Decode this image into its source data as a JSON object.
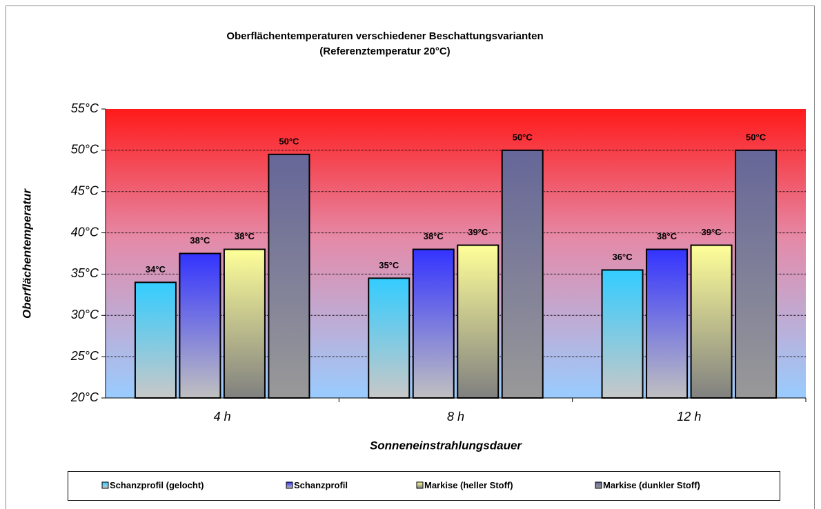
{
  "chart_data": {
    "type": "bar",
    "title": "Oberflächentemperaturen verschiedener Beschattungsvarianten",
    "subtitle": "(Referenztemperatur 20°C)",
    "y_label": "Oberflächentemperatur",
    "x_label": "Sonneneinstrahlungsdauer",
    "categories": [
      "4 h",
      "8 h",
      "12 h"
    ],
    "series": [
      {
        "name": "Schanzprofil (gelocht)",
        "color": "#33ccff",
        "values": [
          34,
          34.5,
          35.5
        ],
        "value_labels": [
          "34°C",
          "35°C",
          "36°C"
        ]
      },
      {
        "name": "Schanzprofil",
        "color": "#3333ff",
        "values": [
          37.5,
          38,
          38
        ],
        "value_labels": [
          "38°C",
          "38°C",
          "38°C"
        ]
      },
      {
        "name": "Markise (heller Stoff)",
        "color": "#ffff99",
        "values": [
          38,
          38.5,
          38.5
        ],
        "value_labels": [
          "38°C",
          "39°C",
          "39°C"
        ]
      },
      {
        "name": "Markise (dunkler Stoff)",
        "color": "#666699",
        "values": [
          49.5,
          50,
          50
        ],
        "value_labels": [
          "50°C",
          "50°C",
          "50°C"
        ]
      }
    ],
    "ylim": [
      20,
      55
    ],
    "yticks": [
      {
        "value": 20,
        "label": "20°C"
      },
      {
        "value": 25,
        "label": "25°C"
      },
      {
        "value": 30,
        "label": "30°C"
      },
      {
        "value": 35,
        "label": "35°C"
      },
      {
        "value": 40,
        "label": "40°C"
      },
      {
        "value": 45,
        "label": "45°C"
      },
      {
        "value": 50,
        "label": "50°C"
      },
      {
        "value": 55,
        "label": "55°C"
      }
    ],
    "grid": true,
    "legend": "bottom"
  }
}
